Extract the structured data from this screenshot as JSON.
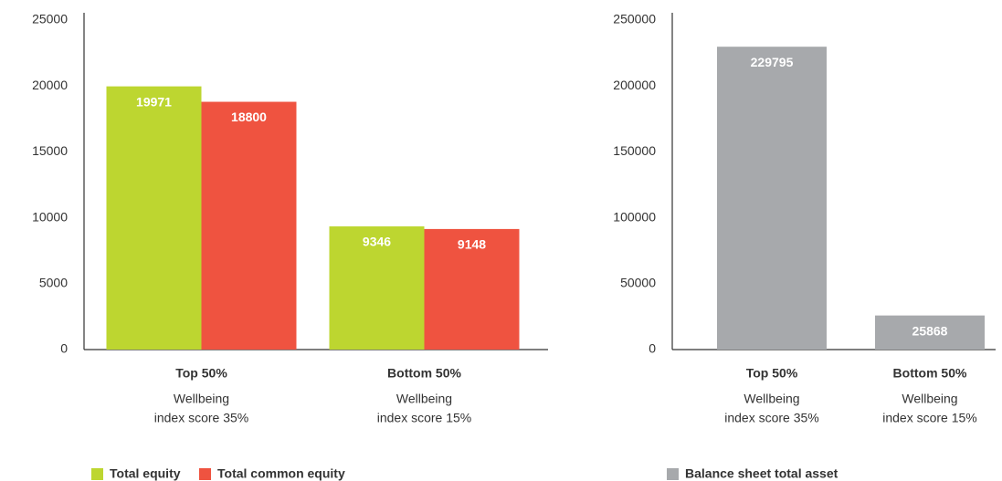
{
  "chart_data": [
    {
      "type": "bar",
      "categories": [
        "Top 50%",
        "Bottom 50%"
      ],
      "category_notes": [
        [
          "Wellbeing",
          "index score 35%"
        ],
        [
          "Wellbeing",
          "index score 15%"
        ]
      ],
      "series": [
        {
          "name": "Total equity",
          "color": "#bdd630",
          "values": [
            19971,
            9346
          ]
        },
        {
          "name": "Total common equity",
          "color": "#ef5340",
          "values": [
            18800,
            9148
          ]
        }
      ],
      "ylim": [
        0,
        25000
      ],
      "yticks": [
        0,
        5000,
        10000,
        15000,
        20000,
        25000
      ],
      "grid": false,
      "legend": "bottom"
    },
    {
      "type": "bar",
      "categories": [
        "Top 50%",
        "Bottom 50%"
      ],
      "category_notes": [
        [
          "Wellbeing",
          "index score 35%"
        ],
        [
          "Wellbeing",
          "index score 15%"
        ]
      ],
      "series": [
        {
          "name": "Balance sheet total asset",
          "color": "#a7a9ac",
          "values": [
            229795,
            25868
          ]
        }
      ],
      "ylim": [
        0,
        250000
      ],
      "yticks": [
        0,
        50000,
        100000,
        150000,
        200000,
        250000
      ],
      "grid": false,
      "legend": "bottom"
    }
  ]
}
